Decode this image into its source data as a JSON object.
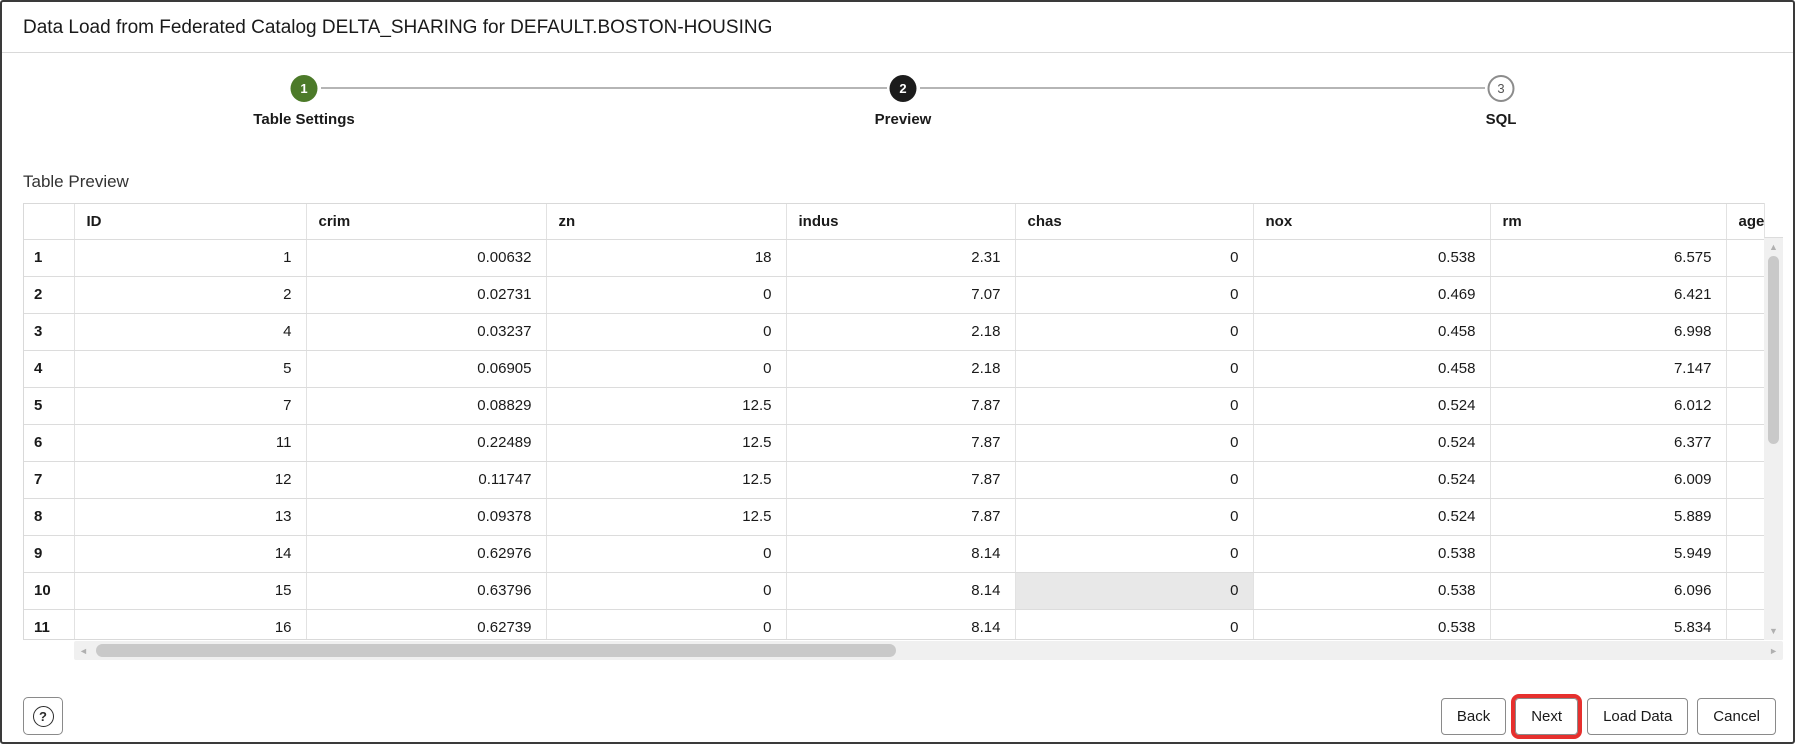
{
  "dialog": {
    "title": "Data Load from Federated Catalog DELTA_SHARING for DEFAULT.BOSTON-HOUSING"
  },
  "stepper": {
    "steps": [
      {
        "number": "1",
        "label": "Table Settings",
        "state": "complete"
      },
      {
        "number": "2",
        "label": "Preview",
        "state": "active"
      },
      {
        "number": "3",
        "label": "SQL",
        "state": "upcoming"
      }
    ]
  },
  "preview": {
    "heading": "Table Preview",
    "table": {
      "columns": [
        "ID",
        "crim",
        "zn",
        "indus",
        "chas",
        "nox",
        "rm",
        "age"
      ],
      "rows": [
        {
          "n": "1",
          "v": [
            "1",
            "0.00632",
            "18",
            "2.31",
            "0",
            "0.538",
            "6.575",
            ""
          ]
        },
        {
          "n": "2",
          "v": [
            "2",
            "0.02731",
            "0",
            "7.07",
            "0",
            "0.469",
            "6.421",
            ""
          ]
        },
        {
          "n": "3",
          "v": [
            "4",
            "0.03237",
            "0",
            "2.18",
            "0",
            "0.458",
            "6.998",
            ""
          ]
        },
        {
          "n": "4",
          "v": [
            "5",
            "0.06905",
            "0",
            "2.18",
            "0",
            "0.458",
            "7.147",
            ""
          ]
        },
        {
          "n": "5",
          "v": [
            "7",
            "0.08829",
            "12.5",
            "7.87",
            "0",
            "0.524",
            "6.012",
            ""
          ]
        },
        {
          "n": "6",
          "v": [
            "11",
            "0.22489",
            "12.5",
            "7.87",
            "0",
            "0.524",
            "6.377",
            ""
          ]
        },
        {
          "n": "7",
          "v": [
            "12",
            "0.11747",
            "12.5",
            "7.87",
            "0",
            "0.524",
            "6.009",
            ""
          ]
        },
        {
          "n": "8",
          "v": [
            "13",
            "0.09378",
            "12.5",
            "7.87",
            "0",
            "0.524",
            "5.889",
            ""
          ]
        },
        {
          "n": "9",
          "v": [
            "14",
            "0.62976",
            "0",
            "8.14",
            "0",
            "0.538",
            "5.949",
            ""
          ]
        },
        {
          "n": "10",
          "v": [
            "15",
            "0.63796",
            "0",
            "8.14",
            "0",
            "0.538",
            "6.096",
            ""
          ]
        },
        {
          "n": "11",
          "v": [
            "16",
            "0.62739",
            "0",
            "8.14",
            "0",
            "0.538",
            "5.834",
            ""
          ]
        }
      ],
      "highlighted_cell": {
        "row_index": 9,
        "col_index": 4
      }
    }
  },
  "scrollbars": {
    "up_arrow": "▲",
    "down_arrow": "▼",
    "left_arrow": "◄",
    "right_arrow": "►"
  },
  "footer": {
    "help_glyph": "?",
    "buttons": [
      {
        "key": "back",
        "label": "Back",
        "annotated": false
      },
      {
        "key": "next",
        "label": "Next",
        "annotated": true
      },
      {
        "key": "load-data",
        "label": "Load Data",
        "annotated": false
      },
      {
        "key": "cancel",
        "label": "Cancel",
        "annotated": false
      }
    ]
  },
  "colors": {
    "step_complete_green": "#4c7a29",
    "step_active_black": "#1c1c1c",
    "highlight_cell_bg": "#e8e8e8",
    "annotation_red": "#e6302e"
  }
}
